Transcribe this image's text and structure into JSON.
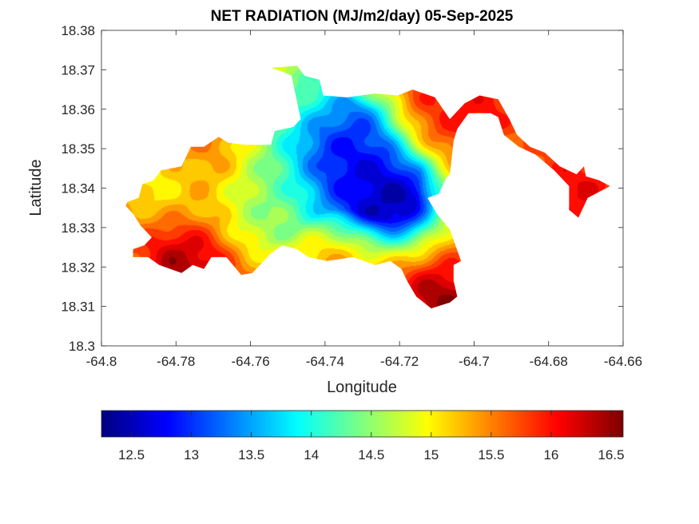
{
  "chart_data": {
    "type": "heatmap",
    "title": "NET RADIATION (MJ/m2/day) 05-Sep-2025",
    "xlabel": "Longitude",
    "ylabel": "Latitude",
    "xlim": [
      -64.8,
      -64.66
    ],
    "ylim": [
      18.3,
      18.38
    ],
    "xticks": [
      "-64.8",
      "-64.78",
      "-64.76",
      "-64.74",
      "-64.72",
      "-64.7",
      "-64.68",
      "-64.66"
    ],
    "yticks": [
      "18.3",
      "18.31",
      "18.32",
      "18.33",
      "18.34",
      "18.35",
      "18.36",
      "18.37",
      "18.38"
    ],
    "colorbar": {
      "range": [
        12.25,
        16.6
      ],
      "colormap": "jet",
      "ticks": [
        "12.5",
        "13",
        "13.5",
        "14",
        "14.5",
        "15",
        "15.5",
        "16",
        "16.5"
      ],
      "placement": "bottom"
    },
    "grid": false,
    "region_outline": [
      [
        -64.793,
        18.3365
      ],
      [
        -64.79,
        18.3375
      ],
      [
        -64.789,
        18.341
      ],
      [
        -64.786,
        18.342
      ],
      [
        -64.784,
        18.3445
      ],
      [
        -64.7785,
        18.3455
      ],
      [
        -64.776,
        18.3505
      ],
      [
        -64.7725,
        18.3505
      ],
      [
        -64.7685,
        18.353
      ],
      [
        -64.766,
        18.3515
      ],
      [
        -64.7615,
        18.351
      ],
      [
        -64.7545,
        18.351
      ],
      [
        -64.7535,
        18.3545
      ],
      [
        -64.7485,
        18.3555
      ],
      [
        -64.7465,
        18.3575
      ],
      [
        -64.749,
        18.3685
      ],
      [
        -64.7515,
        18.3695
      ],
      [
        -64.7545,
        18.3705
      ],
      [
        -64.7475,
        18.371
      ],
      [
        -64.7455,
        18.3685
      ],
      [
        -64.7415,
        18.3675
      ],
      [
        -64.7405,
        18.3635
      ],
      [
        -64.734,
        18.363
      ],
      [
        -64.7265,
        18.364
      ],
      [
        -64.7205,
        18.3635
      ],
      [
        -64.7165,
        18.365
      ],
      [
        -64.7105,
        18.363
      ],
      [
        -64.7065,
        18.3575
      ],
      [
        -64.7025,
        18.3615
      ],
      [
        -64.6985,
        18.3635
      ],
      [
        -64.6935,
        18.3625
      ],
      [
        -64.6905,
        18.3575
      ],
      [
        -64.6885,
        18.3535
      ],
      [
        -64.685,
        18.3505
      ],
      [
        -64.681,
        18.349
      ],
      [
        -64.677,
        18.3455
      ],
      [
        -64.6725,
        18.3435
      ],
      [
        -64.6705,
        18.3455
      ],
      [
        -64.67,
        18.343
      ],
      [
        -64.6665,
        18.342
      ],
      [
        -64.6635,
        18.3405
      ],
      [
        -64.6665,
        18.339
      ],
      [
        -64.6695,
        18.3375
      ],
      [
        -64.6715,
        18.3335
      ],
      [
        -64.672,
        18.3325
      ],
      [
        -64.6745,
        18.3345
      ],
      [
        -64.6745,
        18.3405
      ],
      [
        -64.6785,
        18.3445
      ],
      [
        -64.6835,
        18.3485
      ],
      [
        -64.688,
        18.3505
      ],
      [
        -64.692,
        18.3535
      ],
      [
        -64.6935,
        18.358
      ],
      [
        -64.6955,
        18.359
      ],
      [
        -64.7015,
        18.359
      ],
      [
        -64.7045,
        18.355
      ],
      [
        -64.7055,
        18.352
      ],
      [
        -64.7065,
        18.3435
      ],
      [
        -64.7075,
        18.3425
      ],
      [
        -64.7085,
        18.349
      ],
      [
        -64.715,
        18.349
      ],
      [
        -64.7145,
        18.3405
      ],
      [
        -64.7125,
        18.3375
      ],
      [
        -64.71,
        18.3335
      ],
      [
        -64.7065,
        18.3295
      ],
      [
        -64.7035,
        18.3215
      ],
      [
        -64.7055,
        18.3205
      ],
      [
        -64.7055,
        18.3165
      ],
      [
        -64.7045,
        18.3125
      ],
      [
        -64.7065,
        18.311
      ],
      [
        -64.7115,
        18.3095
      ],
      [
        -64.7155,
        18.3125
      ],
      [
        -64.718,
        18.3165
      ],
      [
        -64.7195,
        18.3195
      ],
      [
        -64.7225,
        18.3215
      ],
      [
        -64.7265,
        18.3205
      ],
      [
        -64.7325,
        18.3225
      ],
      [
        -64.7395,
        18.3215
      ],
      [
        -64.7445,
        18.3225
      ],
      [
        -64.7475,
        18.3245
      ],
      [
        -64.7515,
        18.3255
      ],
      [
        -64.7545,
        18.3235
      ],
      [
        -64.7595,
        18.3185
      ],
      [
        -64.7625,
        18.318
      ],
      [
        -64.7665,
        18.3225
      ],
      [
        -64.7705,
        18.3225
      ],
      [
        -64.7725,
        18.3195
      ],
      [
        -64.7755,
        18.3205
      ],
      [
        -64.7785,
        18.3185
      ],
      [
        -64.7815,
        18.3195
      ],
      [
        -64.7845,
        18.3205
      ],
      [
        -64.7875,
        18.3225
      ],
      [
        -64.7915,
        18.3225
      ],
      [
        -64.7915,
        18.3245
      ],
      [
        -64.7885,
        18.3255
      ],
      [
        -64.7865,
        18.3275
      ],
      [
        -64.7895,
        18.3305
      ],
      [
        -64.7915,
        18.3335
      ],
      [
        -64.7935,
        18.3355
      ]
    ],
    "inner_gap": [
      [
        -64.715,
        18.349
      ],
      [
        -64.7085,
        18.349
      ],
      [
        -64.7075,
        18.3425
      ],
      [
        -64.7095,
        18.3385
      ],
      [
        -64.7125,
        18.3375
      ],
      [
        -64.7145,
        18.3405
      ]
    ],
    "field_peaks": [
      {
        "lon": -64.721,
        "lat": 18.3375,
        "value": 12.25
      },
      {
        "lon": -64.7375,
        "lat": 18.3455,
        "value": 12.8
      },
      {
        "lon": -64.733,
        "lat": 18.3525,
        "value": 12.9
      },
      {
        "lon": -64.7555,
        "lat": 18.3335,
        "value": 14.6
      },
      {
        "lon": -64.781,
        "lat": 18.343,
        "value": 14.6
      },
      {
        "lon": -64.7475,
        "lat": 18.3645,
        "value": 14.4
      },
      {
        "lon": -64.7555,
        "lat": 18.3425,
        "value": 14.4
      },
      {
        "lon": -64.7775,
        "lat": 18.321,
        "value": 16.5
      },
      {
        "lon": -64.7095,
        "lat": 18.311,
        "value": 16.55
      },
      {
        "lon": -64.7025,
        "lat": 18.359,
        "value": 16.0
      },
      {
        "lon": -64.672,
        "lat": 18.339,
        "value": 16.1
      },
      {
        "lon": -64.773,
        "lat": 18.3475,
        "value": 16.0
      },
      {
        "lon": -64.7095,
        "lat": 18.3595,
        "value": 15.9
      }
    ],
    "field_base": 15.5
  }
}
